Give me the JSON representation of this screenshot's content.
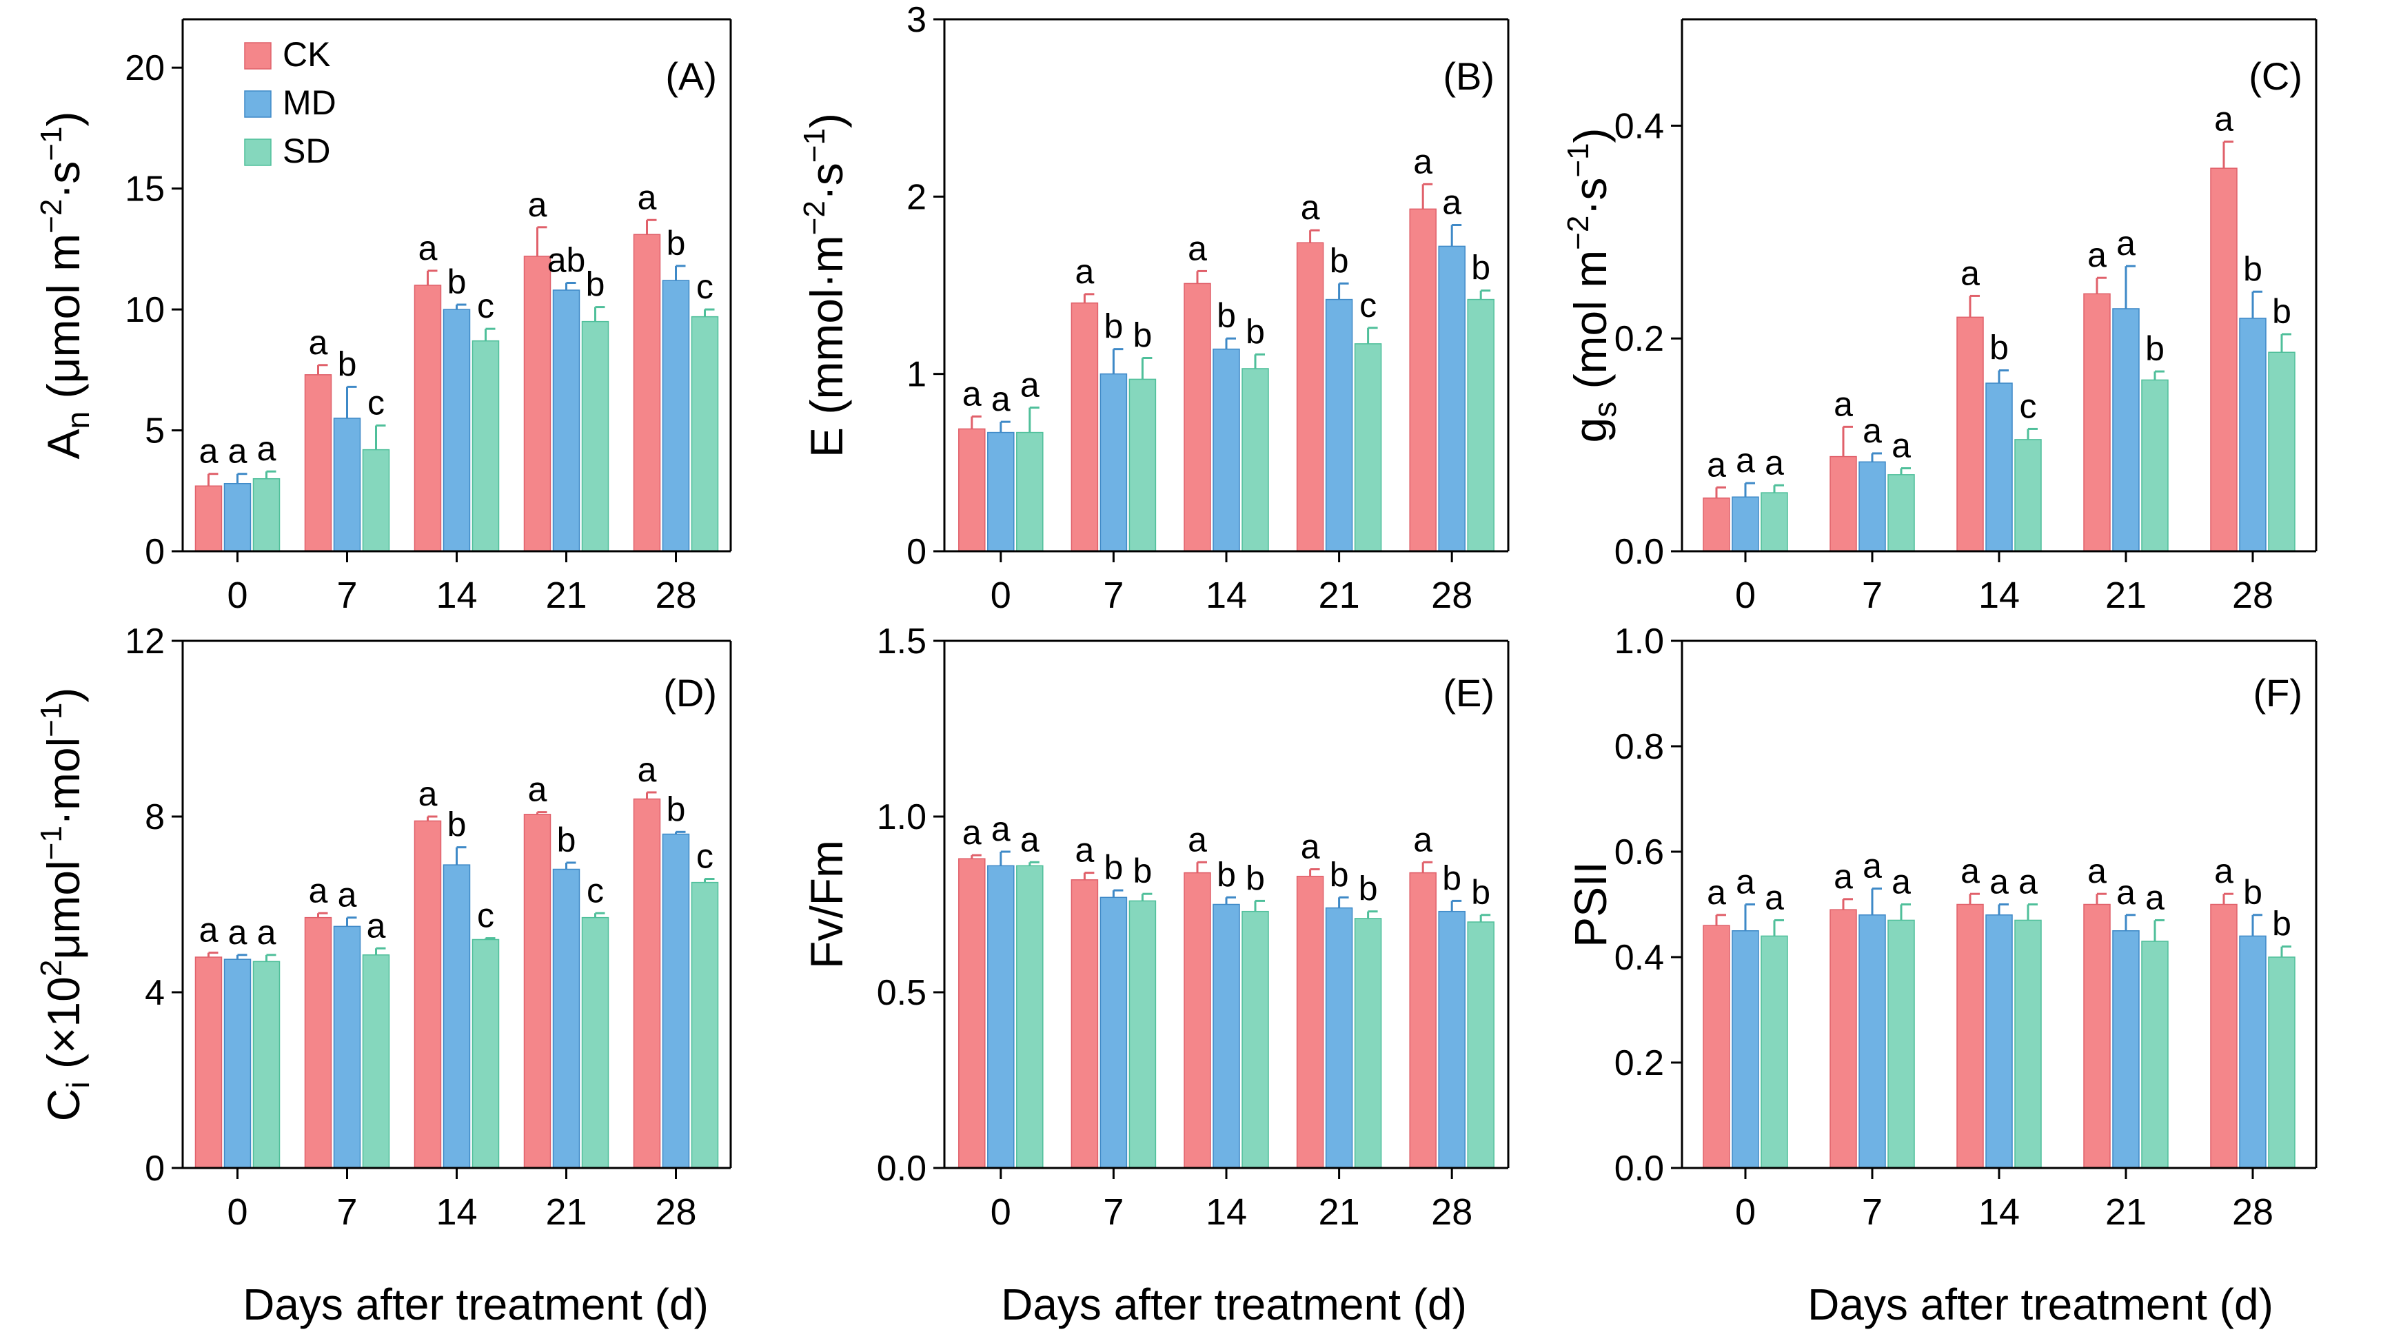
{
  "legend": [
    {
      "label": "CK",
      "color": "#F4868A",
      "stroke": "#E0606A"
    },
    {
      "label": "MD",
      "color": "#6FB2E4",
      "stroke": "#3E89C7"
    },
    {
      "label": "SD",
      "color": "#85D7BD",
      "stroke": "#4FBF9A"
    }
  ],
  "xlabel": "Days after treatment (d)",
  "chart_data": [
    {
      "type": "bar",
      "panel": "(A)",
      "ylabel": [
        "A",
        "n",
        " (μmol m",
        "−2",
        "·s",
        "−1",
        ")"
      ],
      "categories": [
        "0",
        "7",
        "14",
        "21",
        "28"
      ],
      "ylim": [
        0,
        22
      ],
      "yticks": [
        0,
        5,
        10,
        15,
        20
      ],
      "yticklabels": [
        "0",
        "5",
        "10",
        "15",
        "20"
      ],
      "series": [
        {
          "name": "CK",
          "values": [
            2.7,
            7.3,
            11.0,
            12.2,
            13.1
          ],
          "err": [
            0.5,
            0.4,
            0.6,
            1.2,
            0.6
          ],
          "letters": [
            "a",
            "a",
            "a",
            "a",
            "a"
          ]
        },
        {
          "name": "MD",
          "values": [
            2.8,
            5.5,
            10.0,
            10.8,
            11.2
          ],
          "err": [
            0.4,
            1.3,
            0.2,
            0.3,
            0.6
          ],
          "letters": [
            "a",
            "b",
            "b",
            "ab",
            "b"
          ]
        },
        {
          "name": "SD",
          "values": [
            3.0,
            4.2,
            8.7,
            9.5,
            9.7
          ],
          "err": [
            0.3,
            1.0,
            0.5,
            0.6,
            0.3
          ],
          "letters": [
            "a",
            "c",
            "c",
            "b",
            "c"
          ]
        }
      ]
    },
    {
      "type": "bar",
      "panel": "(B)",
      "ylabel": [
        "E",
        "",
        " (mmol·m",
        "−2",
        "·s",
        "−1",
        ")"
      ],
      "categories": [
        "0",
        "7",
        "14",
        "21",
        "28"
      ],
      "ylim": [
        0,
        3
      ],
      "yticks": [
        0,
        1,
        2,
        3
      ],
      "yticklabels": [
        "0",
        "1",
        "2",
        "3"
      ],
      "series": [
        {
          "name": "CK",
          "values": [
            0.69,
            1.4,
            1.51,
            1.74,
            1.93
          ],
          "err": [
            0.07,
            0.05,
            0.07,
            0.07,
            0.14
          ],
          "letters": [
            "a",
            "a",
            "a",
            "a",
            "a"
          ]
        },
        {
          "name": "MD",
          "values": [
            0.67,
            1.0,
            1.14,
            1.42,
            1.72
          ],
          "err": [
            0.06,
            0.14,
            0.06,
            0.09,
            0.12
          ],
          "letters": [
            "a",
            "b",
            "b",
            "b",
            "a"
          ]
        },
        {
          "name": "SD",
          "values": [
            0.67,
            0.97,
            1.03,
            1.17,
            1.42
          ],
          "err": [
            0.14,
            0.12,
            0.08,
            0.09,
            0.05
          ],
          "letters": [
            "a",
            "b",
            "b",
            "c",
            "b"
          ]
        }
      ]
    },
    {
      "type": "bar",
      "panel": "(C)",
      "ylabel": [
        "g",
        "s",
        " (mol m",
        "−2",
        "·s",
        "−1",
        ")"
      ],
      "categories": [
        "0",
        "7",
        "14",
        "21",
        "28"
      ],
      "ylim": [
        0,
        0.5
      ],
      "yticks": [
        0,
        0.2,
        0.4
      ],
      "yticklabels": [
        "0.0",
        "0.2",
        "0.4"
      ],
      "series": [
        {
          "name": "CK",
          "values": [
            0.05,
            0.089,
            0.22,
            0.242,
            0.36
          ],
          "err": [
            0.01,
            0.028,
            0.02,
            0.015,
            0.025
          ],
          "letters": [
            "a",
            "a",
            "a",
            "a",
            "a"
          ]
        },
        {
          "name": "MD",
          "values": [
            0.051,
            0.084,
            0.158,
            0.228,
            0.219
          ],
          "err": [
            0.013,
            0.008,
            0.012,
            0.04,
            0.025
          ],
          "letters": [
            "a",
            "a",
            "b",
            "a",
            "b"
          ]
        },
        {
          "name": "SD",
          "values": [
            0.055,
            0.072,
            0.105,
            0.161,
            0.187
          ],
          "err": [
            0.007,
            0.006,
            0.01,
            0.008,
            0.017
          ],
          "letters": [
            "a",
            "a",
            "c",
            "b",
            "b"
          ]
        }
      ]
    },
    {
      "type": "bar",
      "panel": "(D)",
      "ylabel": [
        "C",
        "i",
        " (×10",
        "2",
        "μmol",
        "−1",
        "·mol",
        "−1",
        ")"
      ],
      "categories": [
        "0",
        "7",
        "14",
        "21",
        "28"
      ],
      "ylim": [
        0,
        12
      ],
      "yticks": [
        0,
        4,
        8,
        12
      ],
      "yticklabels": [
        "0",
        "4",
        "8",
        "12"
      ],
      "series": [
        {
          "name": "CK",
          "values": [
            4.8,
            5.7,
            7.9,
            8.05,
            8.4
          ],
          "err": [
            0.1,
            0.1,
            0.1,
            0.05,
            0.15
          ],
          "letters": [
            "a",
            "a",
            "a",
            "a",
            "a"
          ]
        },
        {
          "name": "MD",
          "values": [
            4.75,
            5.5,
            6.9,
            6.8,
            7.6
          ],
          "err": [
            0.1,
            0.2,
            0.4,
            0.15,
            0.05
          ],
          "letters": [
            "a",
            "a",
            "b",
            "b",
            "b"
          ]
        },
        {
          "name": "SD",
          "values": [
            4.7,
            4.85,
            5.2,
            5.7,
            6.5
          ],
          "err": [
            0.15,
            0.15,
            0.03,
            0.1,
            0.08
          ],
          "letters": [
            "a",
            "a",
            "c",
            "c",
            "c"
          ]
        }
      ]
    },
    {
      "type": "bar",
      "panel": "(E)",
      "ylabel": [
        "Fv/Fm"
      ],
      "categories": [
        "0",
        "7",
        "14",
        "21",
        "28"
      ],
      "ylim": [
        0,
        1.5
      ],
      "yticks": [
        0,
        0.5,
        1.0,
        1.5
      ],
      "yticklabels": [
        "0.0",
        "0.5",
        "1.0",
        "1.5"
      ],
      "series": [
        {
          "name": "CK",
          "values": [
            0.88,
            0.82,
            0.84,
            0.83,
            0.84
          ],
          "err": [
            0.01,
            0.02,
            0.03,
            0.02,
            0.03
          ],
          "letters": [
            "a",
            "a",
            "a",
            "a",
            "a"
          ]
        },
        {
          "name": "MD",
          "values": [
            0.86,
            0.77,
            0.75,
            0.74,
            0.73
          ],
          "err": [
            0.04,
            0.02,
            0.02,
            0.03,
            0.03
          ],
          "letters": [
            "a",
            "b",
            "b",
            "b",
            "b"
          ]
        },
        {
          "name": "SD",
          "values": [
            0.86,
            0.76,
            0.73,
            0.71,
            0.7
          ],
          "err": [
            0.01,
            0.02,
            0.03,
            0.02,
            0.02
          ],
          "letters": [
            "a",
            "b",
            "b",
            "b",
            "b"
          ]
        }
      ]
    },
    {
      "type": "bar",
      "panel": "(F)",
      "ylabel": [
        "PSII"
      ],
      "categories": [
        "0",
        "7",
        "14",
        "21",
        "28"
      ],
      "ylim": [
        0,
        1.0
      ],
      "yticks": [
        0,
        0.2,
        0.4,
        0.6,
        0.8,
        1.0
      ],
      "yticklabels": [
        "0.0",
        "0.2",
        "0.4",
        "0.6",
        "0.8",
        "1.0"
      ],
      "series": [
        {
          "name": "CK",
          "values": [
            0.46,
            0.49,
            0.5,
            0.5,
            0.5
          ],
          "err": [
            0.02,
            0.02,
            0.02,
            0.02,
            0.02
          ],
          "letters": [
            "a",
            "a",
            "a",
            "a",
            "a"
          ]
        },
        {
          "name": "MD",
          "values": [
            0.45,
            0.48,
            0.48,
            0.45,
            0.44
          ],
          "err": [
            0.05,
            0.05,
            0.02,
            0.03,
            0.04
          ],
          "letters": [
            "a",
            "a",
            "a",
            "a",
            "b"
          ]
        },
        {
          "name": "SD",
          "values": [
            0.44,
            0.47,
            0.47,
            0.43,
            0.4
          ],
          "err": [
            0.03,
            0.03,
            0.03,
            0.04,
            0.02
          ],
          "letters": [
            "a",
            "a",
            "a",
            "a",
            "b"
          ]
        }
      ]
    }
  ]
}
